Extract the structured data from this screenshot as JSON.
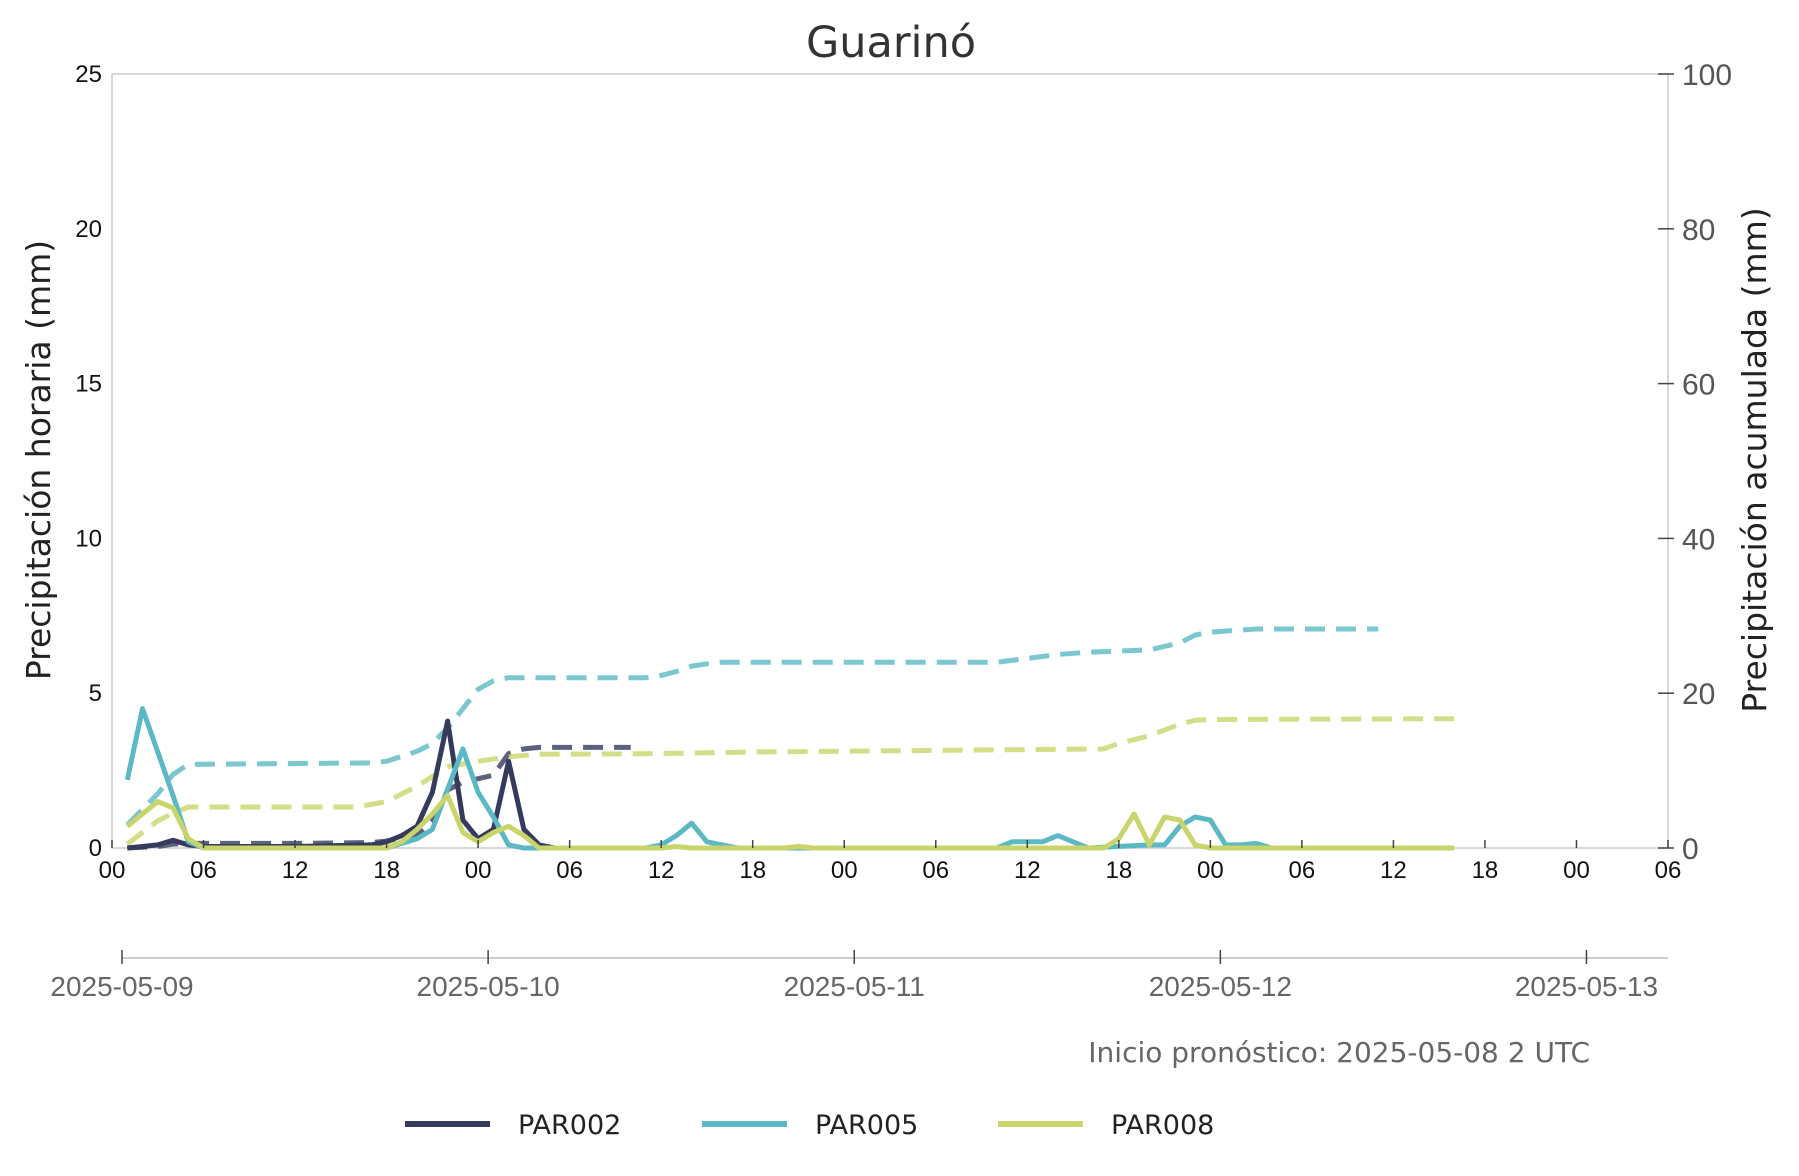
{
  "chart_data": {
    "type": "line",
    "title": "Guarinó",
    "ylabel_left": "Precipitación horaria (mm)",
    "ylabel_right": "Precipitación acumulada (mm)",
    "ylim_left": [
      0,
      25
    ],
    "ylim_right": [
      0,
      100
    ],
    "yticks_left": [
      "0",
      "5",
      "10",
      "15",
      "20",
      "25"
    ],
    "yticks_right": [
      "0",
      "20",
      "40",
      "60",
      "80",
      "100"
    ],
    "xlim_hours": [
      0,
      102
    ],
    "xticks_hours": [
      "00",
      "06",
      "12",
      "18",
      "00",
      "06",
      "12",
      "18",
      "00",
      "06",
      "12",
      "18",
      "00",
      "06",
      "12",
      "18",
      "00",
      "06"
    ],
    "date_labels": [
      "2025-05-09",
      "2025-05-10",
      "2025-05-11",
      "2025-05-12",
      "2025-05-13"
    ],
    "note": "Inicio pronóstico: 2025-05-08 2 UTC",
    "grid": false,
    "legend_position": "bottom",
    "series": [
      {
        "name": "PAR002",
        "color": "#363a5c",
        "hourly": {
          "x": [
            "2025-05-09 01:00",
            "2025-05-09 02:00",
            "2025-05-09 03:00",
            "2025-05-09 04:00",
            "2025-05-09 05:00",
            "2025-05-09 06:00",
            "2025-05-09 12:00",
            "2025-05-09 17:00",
            "2025-05-09 18:00",
            "2025-05-09 19:00",
            "2025-05-09 20:00",
            "2025-05-09 21:00",
            "2025-05-09 22:00",
            "2025-05-09 23:00",
            "2025-05-10 00:00",
            "2025-05-10 01:00",
            "2025-05-10 02:00",
            "2025-05-10 03:00",
            "2025-05-10 04:00",
            "2025-05-10 05:00",
            "2025-05-10 06:00",
            "2025-05-10 10:00"
          ],
          "y": [
            0,
            0.05,
            0.1,
            0.25,
            0.1,
            0.05,
            0.05,
            0.1,
            0.2,
            0.4,
            0.7,
            1.8,
            4.1,
            0.9,
            0.3,
            0.6,
            2.8,
            0.6,
            0.1,
            0,
            0,
            0
          ]
        },
        "cumulative": {
          "x": [
            "2025-05-09 01:00",
            "2025-05-09 03:00",
            "2025-05-09 04:00",
            "2025-05-09 05:00",
            "2025-05-09 12:00",
            "2025-05-09 17:00",
            "2025-05-09 18:00",
            "2025-05-09 20:00",
            "2025-05-09 21:00",
            "2025-05-09 22:00",
            "2025-05-09 23:00",
            "2025-05-10 01:00",
            "2025-05-10 02:00",
            "2025-05-10 03:00",
            "2025-05-10 04:00",
            "2025-05-10 10:00"
          ],
          "y": [
            0,
            0.2,
            0.5,
            0.6,
            0.6,
            0.7,
            0.9,
            1.7,
            3.5,
            7.5,
            8.5,
            9.4,
            12.2,
            12.8,
            13,
            13
          ]
        }
      },
      {
        "name": "PAR005",
        "color": "#5ab9c4",
        "hourly": {
          "x": [
            "2025-05-09 01:00",
            "2025-05-09 02:00",
            "2025-05-09 03:00",
            "2025-05-09 04:00",
            "2025-05-09 05:00",
            "2025-05-09 06:00",
            "2025-05-09 18:00",
            "2025-05-09 20:00",
            "2025-05-09 21:00",
            "2025-05-09 22:00",
            "2025-05-09 23:00",
            "2025-05-10 00:00",
            "2025-05-10 01:00",
            "2025-05-10 02:00",
            "2025-05-10 03:00",
            "2025-05-10 04:00",
            "2025-05-10 11:00",
            "2025-05-10 12:00",
            "2025-05-10 13:00",
            "2025-05-10 14:00",
            "2025-05-10 15:00",
            "2025-05-10 16:00",
            "2025-05-10 17:00",
            "2025-05-10 18:00",
            "2025-05-11 10:00",
            "2025-05-11 11:00",
            "2025-05-11 12:00",
            "2025-05-11 13:00",
            "2025-05-11 14:00",
            "2025-05-11 15:00",
            "2025-05-11 16:00",
            "2025-05-11 20:00",
            "2025-05-11 21:00",
            "2025-05-11 22:00",
            "2025-05-11 23:00",
            "2025-05-12 00:00",
            "2025-05-12 01:00",
            "2025-05-12 02:00",
            "2025-05-12 03:00",
            "2025-05-12 04:00",
            "2025-05-12 12:00"
          ],
          "y": [
            2.2,
            4.5,
            3.1,
            1.7,
            0.2,
            0,
            0,
            0.3,
            0.6,
            1.9,
            3.2,
            1.8,
            1,
            0.1,
            0,
            0,
            0,
            0.1,
            0.4,
            0.8,
            0.2,
            0.1,
            0,
            0,
            0,
            0.2,
            0.2,
            0.2,
            0.4,
            0.2,
            0,
            0.1,
            0.1,
            0.7,
            1,
            0.9,
            0.1,
            0.1,
            0.15,
            0,
            0
          ]
        },
        "cumulative": {
          "x": [
            "2025-05-09 01:00",
            "2025-05-09 02:00",
            "2025-05-09 03:00",
            "2025-05-09 04:00",
            "2025-05-09 05:00",
            "2025-05-09 17:00",
            "2025-05-09 18:00",
            "2025-05-09 20:00",
            "2025-05-09 21:00",
            "2025-05-09 22:00",
            "2025-05-09 23:00",
            "2025-05-10 00:00",
            "2025-05-10 01:00",
            "2025-05-10 02:00",
            "2025-05-10 11:00",
            "2025-05-10 12:00",
            "2025-05-10 13:00",
            "2025-05-10 14:00",
            "2025-05-10 15:00",
            "2025-05-10 16:00",
            "2025-05-11 10:00",
            "2025-05-11 12:00",
            "2025-05-11 14:00",
            "2025-05-11 16:00",
            "2025-05-11 20:00",
            "2025-05-11 22:00",
            "2025-05-11 23:00",
            "2025-05-12 00:00",
            "2025-05-12 03:00",
            "2025-05-12 11:00"
          ],
          "y": [
            3,
            5,
            7,
            9.5,
            10.8,
            11,
            11.2,
            12.5,
            13.5,
            15.5,
            18,
            20.5,
            21.6,
            22,
            22,
            22.3,
            22.8,
            23.5,
            23.8,
            24,
            24,
            24.5,
            25,
            25.3,
            25.6,
            26.5,
            27.5,
            27.9,
            28.3,
            28.3
          ]
        }
      },
      {
        "name": "PAR008",
        "color": "#c9d46a",
        "hourly": {
          "x": [
            "2025-05-09 01:00",
            "2025-05-09 02:00",
            "2025-05-09 03:00",
            "2025-05-09 04:00",
            "2025-05-09 05:00",
            "2025-05-09 06:00",
            "2025-05-09 18:00",
            "2025-05-09 19:00",
            "2025-05-09 20:00",
            "2025-05-09 21:00",
            "2025-05-09 22:00",
            "2025-05-09 23:00",
            "2025-05-10 00:00",
            "2025-05-10 01:00",
            "2025-05-10 02:00",
            "2025-05-10 03:00",
            "2025-05-10 04:00",
            "2025-05-10 12:00",
            "2025-05-10 13:00",
            "2025-05-10 14:00",
            "2025-05-10 20:00",
            "2025-05-10 21:00",
            "2025-05-10 22:00",
            "2025-05-11 17:00",
            "2025-05-11 18:00",
            "2025-05-11 19:00",
            "2025-05-11 20:00",
            "2025-05-11 21:00",
            "2025-05-11 22:00",
            "2025-05-11 23:00",
            "2025-05-12 00:00",
            "2025-05-12 16:00"
          ],
          "y": [
            0.7,
            1.1,
            1.5,
            1.3,
            0.3,
            0,
            0,
            0.2,
            0.6,
            1.1,
            1.7,
            0.5,
            0.2,
            0.5,
            0.7,
            0.4,
            0,
            0,
            0.05,
            0,
            0,
            0.05,
            0,
            0,
            0.3,
            1.1,
            0.1,
            1,
            0.9,
            0.1,
            0,
            0
          ]
        },
        "cumulative": {
          "x": [
            "2025-05-09 01:00",
            "2025-05-09 02:00",
            "2025-05-09 03:00",
            "2025-05-09 04:00",
            "2025-05-09 05:00",
            "2025-05-09 16:00",
            "2025-05-09 18:00",
            "2025-05-09 20:00",
            "2025-05-09 22:00",
            "2025-05-10 00:00",
            "2025-05-10 02:00",
            "2025-05-10 04:00",
            "2025-05-10 12:00",
            "2025-05-10 18:00",
            "2025-05-11 17:00",
            "2025-05-11 18:00",
            "2025-05-11 20:00",
            "2025-05-11 22:00",
            "2025-05-11 23:00",
            "2025-05-12 00:00",
            "2025-05-12 16:00"
          ],
          "y": [
            0.5,
            2,
            3.5,
            4.5,
            5.3,
            5.3,
            6,
            8,
            10.5,
            11.2,
            11.8,
            12.1,
            12.2,
            12.4,
            12.8,
            13.5,
            14.5,
            16,
            16.5,
            16.6,
            16.7
          ]
        }
      }
    ]
  }
}
